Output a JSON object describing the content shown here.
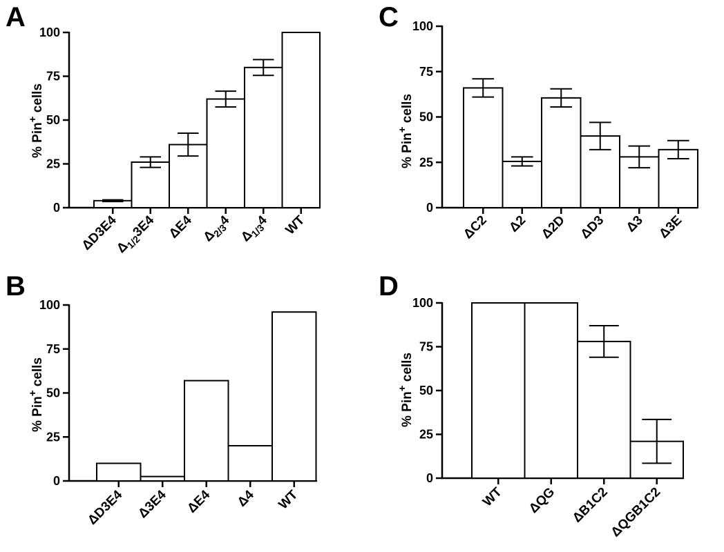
{
  "chart_data": [
    {
      "panel": "A",
      "type": "bar",
      "ylabel": "% Pin+ cells",
      "ylim": [
        0,
        100
      ],
      "yticks": [
        "0",
        "25",
        "50",
        "75",
        "100"
      ],
      "categories": [
        "ΔD3E4",
        "Δ1/23E4",
        "ΔE4",
        "Δ2/34",
        "Δ1/34",
        "WT"
      ],
      "values": [
        4,
        26,
        36,
        62,
        80,
        100
      ],
      "errors": [
        0.5,
        3,
        6.5,
        4.5,
        4.5,
        0
      ]
    },
    {
      "panel": "B",
      "type": "bar",
      "ylabel": "% Pin+ cells",
      "ylim": [
        0,
        100
      ],
      "yticks": [
        "0",
        "25",
        "50",
        "75",
        "100"
      ],
      "categories": [
        "ΔD3E4",
        "Δ3E4",
        "ΔE4",
        "Δ4",
        "WT"
      ],
      "values": [
        10,
        2.5,
        57,
        20,
        96
      ],
      "errors": [
        0,
        0,
        0,
        0,
        0
      ]
    },
    {
      "panel": "C",
      "type": "bar",
      "ylabel": "% Pin+ cells",
      "ylim": [
        0,
        100
      ],
      "yticks": [
        "0",
        "25",
        "50",
        "75",
        "100"
      ],
      "categories": [
        "ΔC2",
        "Δ2",
        "Δ2D",
        "ΔD3",
        "Δ3",
        "Δ3E"
      ],
      "values": [
        66,
        25.5,
        60.5,
        39.5,
        28,
        32
      ],
      "errors": [
        5,
        2.5,
        5,
        7.5,
        6,
        5
      ]
    },
    {
      "panel": "D",
      "type": "bar",
      "ylabel": "% Pin+ cells",
      "ylim": [
        0,
        100
      ],
      "yticks": [
        "0",
        "25",
        "50",
        "75",
        "100"
      ],
      "categories": [
        "WT",
        "ΔQG",
        "ΔB1C2",
        "ΔQGB1C2"
      ],
      "values": [
        100,
        100,
        78,
        21
      ],
      "errors": [
        0,
        0,
        9,
        12.5
      ]
    }
  ]
}
